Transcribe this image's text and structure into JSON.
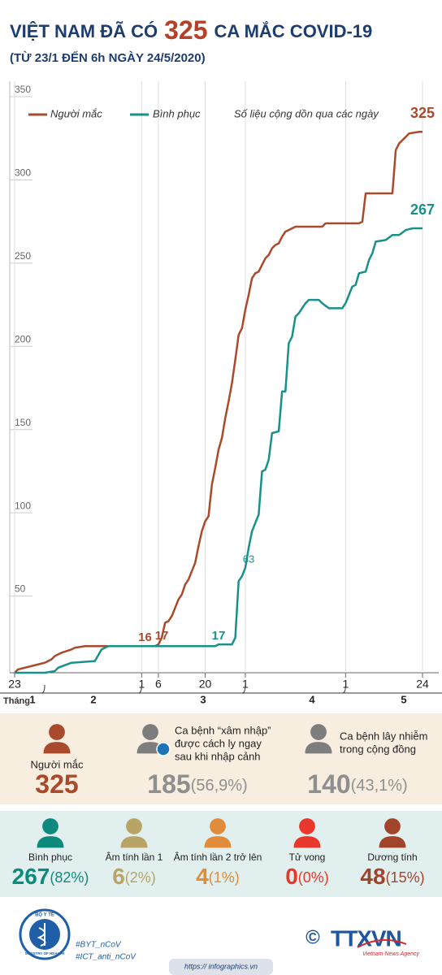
{
  "header": {
    "title_start": "VIỆT NAM ĐÃ CÓ",
    "title_number": "325",
    "title_end": "CA MẮC COVID-19",
    "subtitle": "(TỪ 23/1 ĐẾN 6h NGÀY 24/5/2020)"
  },
  "chart_data": {
    "type": "line",
    "note": "Số liệu cộng dồn qua các ngày",
    "xlim": [
      0,
      122
    ],
    "ylim": [
      0,
      350
    ],
    "yticks": [
      50,
      100,
      150,
      200,
      250,
      300,
      350
    ],
    "xticks": [
      {
        "value": 0,
        "label": "23"
      },
      {
        "value": 38,
        "label": "1"
      },
      {
        "value": 43,
        "label": "6"
      },
      {
        "value": 57,
        "label": "20"
      },
      {
        "value": 69,
        "label": "1"
      },
      {
        "value": 99,
        "label": "1"
      },
      {
        "value": 122,
        "label": "24"
      }
    ],
    "month_axis": {
      "label": "Tháng",
      "months": [
        "1",
        "2",
        "3",
        "4",
        "5"
      ]
    },
    "grid": true,
    "series": [
      {
        "name": "Người mắc",
        "color": "#a94a2c",
        "x": [
          0,
          1,
          7,
          9,
          11,
          12,
          14,
          17,
          18,
          21,
          42,
          43,
          44,
          45,
          46,
          47,
          48,
          49,
          50,
          51,
          52,
          53,
          54,
          55,
          56,
          57,
          58,
          59,
          60,
          61,
          62,
          63,
          64,
          65,
          66,
          67,
          68,
          69,
          70,
          71,
          72,
          73,
          74,
          75,
          76,
          77,
          78,
          79,
          80,
          81,
          82,
          83,
          84,
          92,
          93,
          103,
          104,
          105,
          113,
          114,
          115,
          116,
          118,
          121,
          122
        ],
        "values": [
          0,
          2,
          5,
          6,
          8,
          10,
          12,
          14,
          15,
          16,
          16,
          17,
          21,
          30,
          31,
          34,
          39,
          44,
          47,
          53,
          56,
          61,
          66,
          76,
          85,
          91,
          94,
          113,
          123,
          134,
          141,
          153,
          163,
          174,
          188,
          203,
          207,
          218,
          227,
          237,
          240,
          241,
          245,
          249,
          251,
          255,
          257,
          258,
          262,
          265,
          266,
          267,
          268,
          268,
          270,
          270,
          271,
          288,
          288,
          314,
          318,
          320,
          324,
          325,
          325
        ],
        "labels": [
          {
            "x": 39,
            "value": 16
          },
          {
            "x": 44,
            "value": 17
          },
          {
            "x": 122,
            "value": 325
          }
        ]
      },
      {
        "name": "Bình phục",
        "color": "#1a9188",
        "x": [
          0,
          9,
          12,
          13,
          17,
          24,
          26,
          28,
          60,
          61,
          65,
          66,
          67,
          68,
          69,
          70,
          71,
          72,
          73,
          74,
          75,
          76,
          77,
          79,
          80,
          81,
          82,
          83,
          84,
          85,
          86,
          87,
          88,
          91,
          92,
          94,
          98,
          99,
          101,
          102,
          103,
          105,
          106,
          107,
          108,
          111,
          113,
          115,
          117,
          119,
          122
        ],
        "values": [
          0,
          0,
          1,
          3,
          6,
          7,
          14,
          16,
          16,
          17,
          17,
          21,
          55,
          58,
          63,
          75,
          85,
          90,
          95,
          121,
          122,
          128,
          144,
          145,
          169,
          169,
          198,
          202,
          214,
          216,
          219,
          222,
          224,
          224,
          222,
          219,
          219,
          222,
          232,
          233,
          240,
          241,
          248,
          252,
          259,
          260,
          263,
          263,
          266,
          267,
          267
        ],
        "labels": [
          {
            "x": 61,
            "value": 17
          },
          {
            "x": 70,
            "value": 63
          },
          {
            "x": 122,
            "value": 267
          }
        ]
      }
    ]
  },
  "panel_cases": [
    {
      "lines": [
        "Người mắc"
      ],
      "value": "325",
      "pct": "",
      "color": "#a94a2c",
      "icon": "#a94a2c"
    },
    {
      "lines": [
        "Ca bệnh “xâm nhập”",
        "được cách ly ngay",
        "sau khi nhập cảnh"
      ],
      "value": "185",
      "pct": "(56,9%)",
      "color": "#8f8f8f",
      "icon": "#7d7d7d"
    },
    {
      "lines": [
        "Ca bệnh lây nhiễm",
        "trong cộng đồng"
      ],
      "value": "140",
      "pct": "(43,1%)",
      "color": "#8f8f8f",
      "icon": "#7d7d7d"
    }
  ],
  "panel_status": [
    {
      "label": "Bình phục",
      "value": "267",
      "pct": "(82%)",
      "color": "#0e8a7d"
    },
    {
      "label": "Âm tính lần 1",
      "value": "6",
      "pct": "(2%)",
      "color": "#b8a565"
    },
    {
      "label": "Âm tính lần 2 trở lên",
      "value": "4",
      "pct": "(1%)",
      "color": "#e08c3a"
    },
    {
      "label": "Tử vong",
      "value": "0",
      "pct": "(0%)",
      "color": "#e8372b"
    },
    {
      "label": "Dương tính",
      "value": "48",
      "pct": "(15%)",
      "color": "#a0452b"
    }
  ],
  "footer": {
    "logo_top": "BỘ Y TẾ",
    "logo_bottom": "MINISTRY OF HEALTH",
    "tags": [
      "#BYT_nCoV",
      "#ICT_anti_nCoV"
    ],
    "copyright": "©",
    "brand": "TTXVN",
    "brand_sub": "Vietnam News Agency",
    "url": "https:// infographics.vn"
  }
}
